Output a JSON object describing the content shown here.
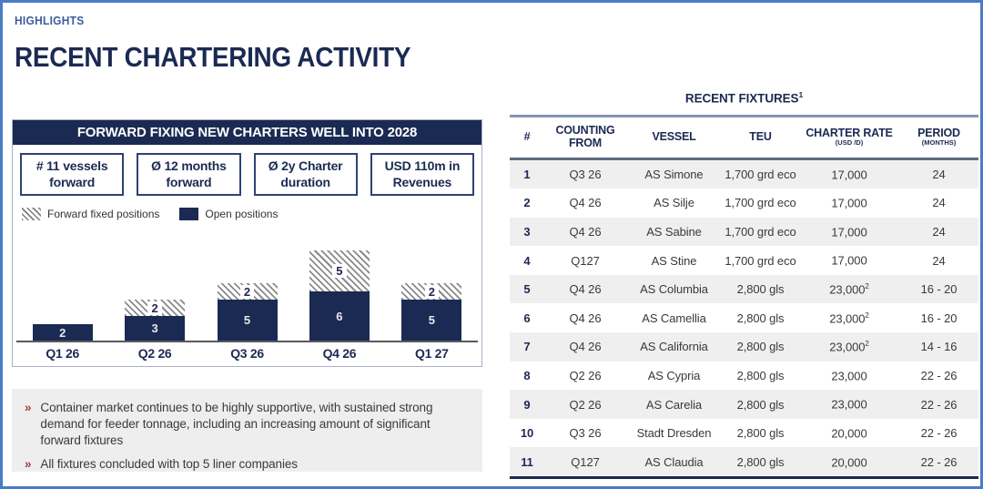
{
  "page": {
    "eyebrow": "HIGHLIGHTS",
    "title": "RECENT CHARTERING ACTIVITY"
  },
  "colors": {
    "navy": "#1b2a52",
    "eyebrow_blue": "#3d5c9d",
    "page_border_blue": "#4a7cc7",
    "bullet_red": "#a43c3c",
    "row_alt_gray": "#efefef",
    "bullets_bg": "#eeeeee"
  },
  "chart_panel": {
    "title": "FORWARD FIXING NEW CHARTERS WELL INTO 2028",
    "stats": [
      {
        "line1": "# 11 vessels",
        "line2": "forward"
      },
      {
        "line1": "Ø 12 months",
        "line2": "forward"
      },
      {
        "line1": "Ø 2y Charter",
        "line2": "duration"
      },
      {
        "line1": "USD 110m in",
        "line2": "Revenues"
      }
    ],
    "legend": [
      {
        "label": "Forward fixed positions",
        "swatch": "hatched"
      },
      {
        "label": "Open positions",
        "swatch": "solid"
      }
    ]
  },
  "chart_data": {
    "type": "bar",
    "stacked": true,
    "title": "FORWARD FIXING NEW CHARTERS WELL INTO 2028",
    "categories": [
      "Q1 26",
      "Q2 26",
      "Q3 26",
      "Q4 26",
      "Q1 27"
    ],
    "series": [
      {
        "name": "Open positions",
        "style": "solid-navy",
        "values": [
          2,
          3,
          5,
          6,
          5
        ]
      },
      {
        "name": "Forward fixed positions",
        "style": "hatched",
        "values": [
          0,
          2,
          2,
          5,
          2
        ]
      }
    ],
    "data_labels": true,
    "legend_position": "top-left",
    "grid": false
  },
  "bullets": {
    "marker": "»",
    "items": [
      "Container market continues to be highly supportive, with sustained strong demand for feeder tonnage, including an increasing amount of significant forward fixtures",
      "All fixtures concluded with top 5 liner companies"
    ]
  },
  "table": {
    "title": "RECENT FIXTURES",
    "title_footnote": "1",
    "columns": [
      {
        "label": "#",
        "sub": ""
      },
      {
        "label": "COUNTING FROM",
        "sub": ""
      },
      {
        "label": "VESSEL",
        "sub": ""
      },
      {
        "label": "TEU",
        "sub": ""
      },
      {
        "label": "CHARTER RATE",
        "sub": "(USD /D)"
      },
      {
        "label": "PERIOD",
        "sub": "(MONTHS)"
      }
    ],
    "rows": [
      {
        "num": "1",
        "counting_from": "Q3 26",
        "vessel": "AS Simone",
        "teu": "1,700 grd eco",
        "rate": "17,000",
        "rate_note": "",
        "period": "24"
      },
      {
        "num": "2",
        "counting_from": "Q4 26",
        "vessel": "AS Silje",
        "teu": "1,700 grd eco",
        "rate": "17,000",
        "rate_note": "",
        "period": "24"
      },
      {
        "num": "3",
        "counting_from": "Q4 26",
        "vessel": "AS Sabine",
        "teu": "1,700 grd eco",
        "rate": "17,000",
        "rate_note": "",
        "period": "24"
      },
      {
        "num": "4",
        "counting_from": "Q127",
        "vessel": "AS Stine",
        "teu": "1,700 grd eco",
        "rate": "17,000",
        "rate_note": "",
        "period": "24"
      },
      {
        "num": "5",
        "counting_from": "Q4 26",
        "vessel": "AS Columbia",
        "teu": "2,800 gls",
        "rate": "23,000",
        "rate_note": "2",
        "period": "16 - 20"
      },
      {
        "num": "6",
        "counting_from": "Q4 26",
        "vessel": "AS Camellia",
        "teu": "2,800 gls",
        "rate": "23,000",
        "rate_note": "2",
        "period": "16 - 20"
      },
      {
        "num": "7",
        "counting_from": "Q4 26",
        "vessel": "AS California",
        "teu": "2,800 gls",
        "rate": "23,000",
        "rate_note": "2",
        "period": "14 - 16"
      },
      {
        "num": "8",
        "counting_from": "Q2 26",
        "vessel": "AS Cypria",
        "teu": "2,800 gls",
        "rate": "23,000",
        "rate_note": "",
        "period": "22 - 26"
      },
      {
        "num": "9",
        "counting_from": "Q2 26",
        "vessel": "AS Carelia",
        "teu": "2,800 gls",
        "rate": "23,000",
        "rate_note": "",
        "period": "22 - 26"
      },
      {
        "num": "10",
        "counting_from": "Q3 26",
        "vessel": "Stadt Dresden",
        "teu": "2,800 gls",
        "rate": "20,000",
        "rate_note": "",
        "period": "22 - 26"
      },
      {
        "num": "11",
        "counting_from": "Q127",
        "vessel": "AS Claudia",
        "teu": "2,800 gls",
        "rate": "20,000",
        "rate_note": "",
        "period": "22 - 26"
      }
    ]
  }
}
